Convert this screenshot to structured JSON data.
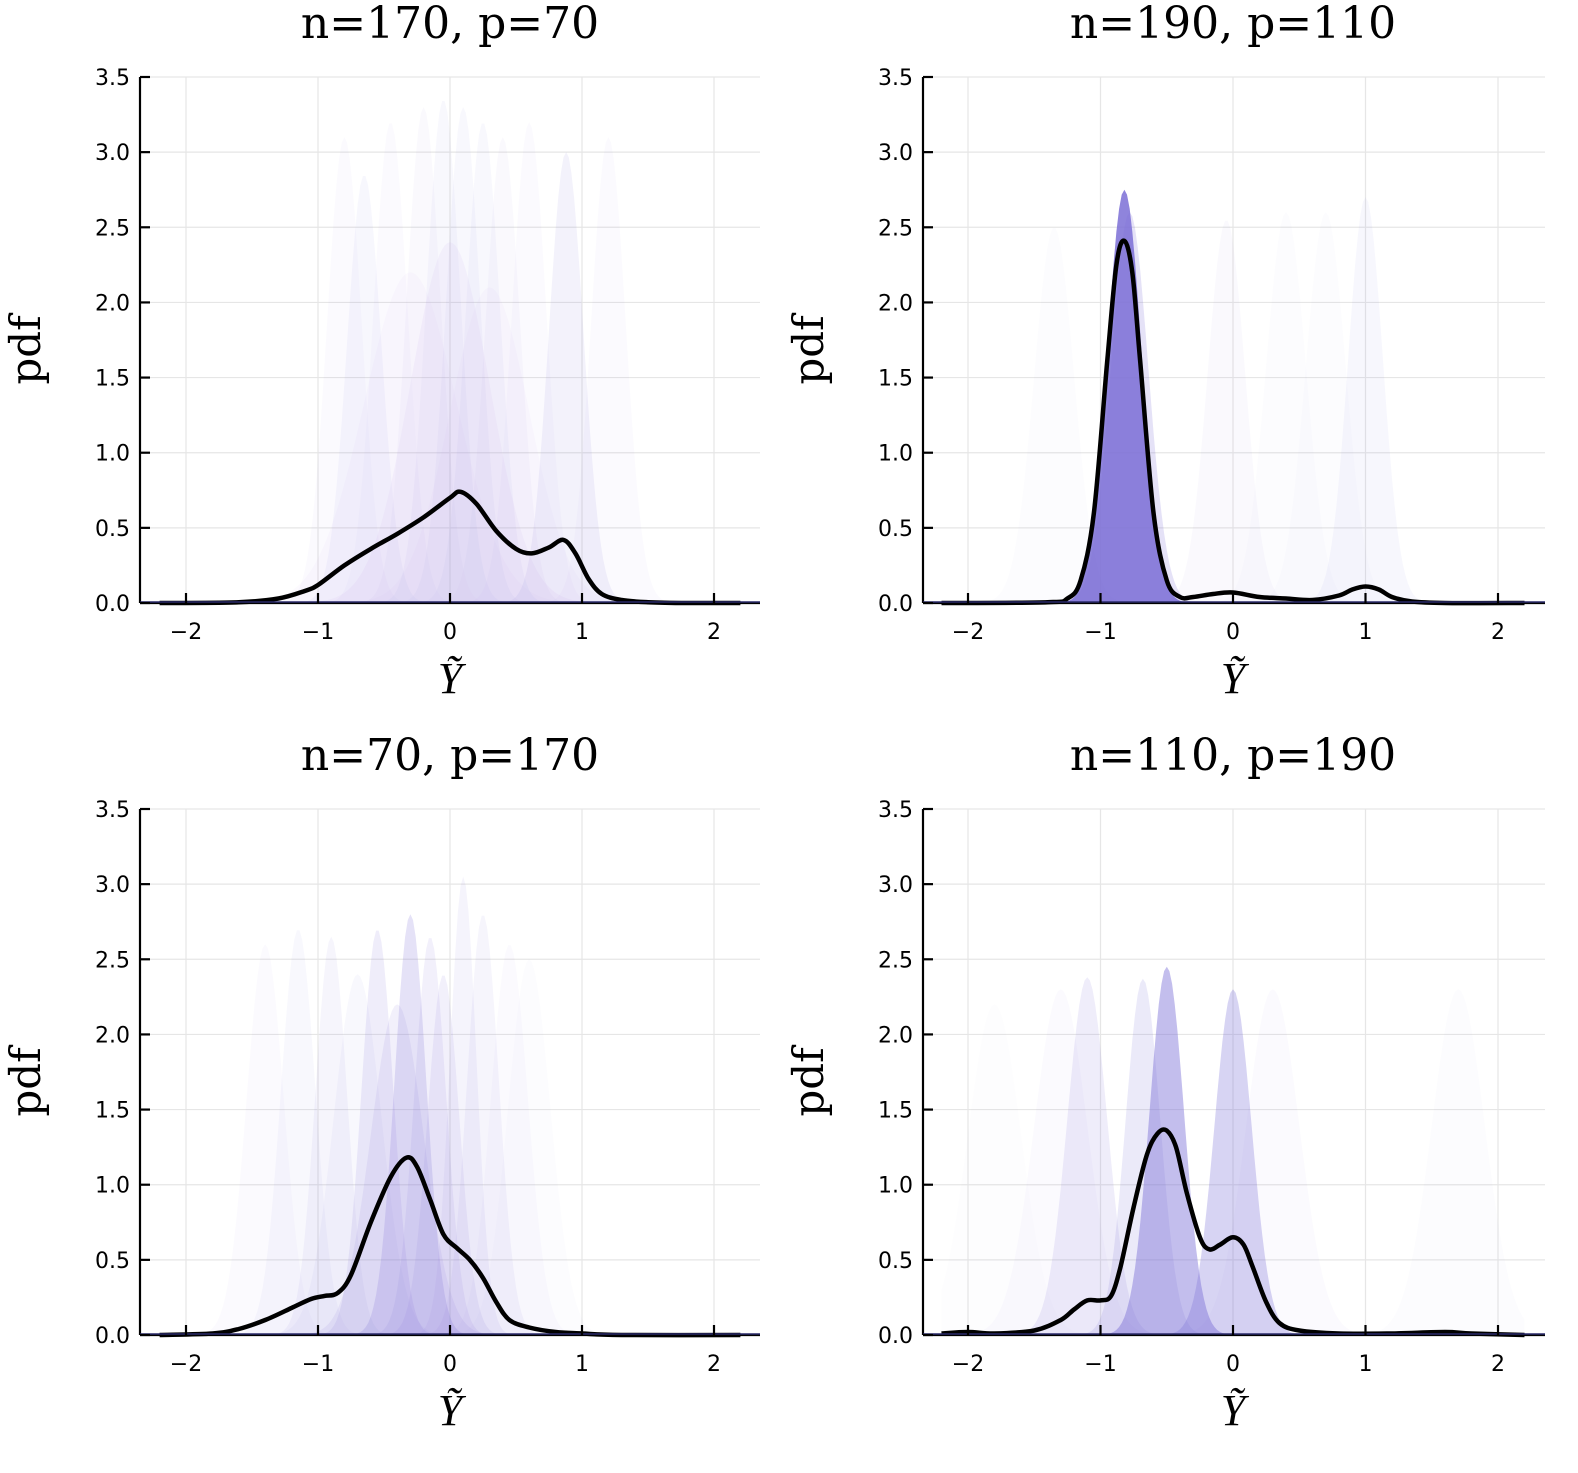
{
  "figure": {
    "layout": "2x2",
    "shared_style": {
      "component_fill_color": "#7b6fd6",
      "component_fill_color_alt": "#c8a8f0",
      "kde_line_color": "#000000",
      "grid_color": "#e6e6e6"
    }
  },
  "chart_data": [
    {
      "type": "area",
      "title": "n=170, p=70",
      "xlabel": "Ỹ",
      "ylabel": "pdf",
      "xlim": [
        -2.2,
        2.2
      ],
      "ylim": [
        0,
        3.5
      ],
      "xticks": [
        -2,
        -1,
        0,
        1,
        2
      ],
      "xtick_labels": [
        "−2",
        "−1",
        "0",
        "1",
        "2"
      ],
      "yticks": [
        0,
        0.5,
        1.0,
        1.5,
        2.0,
        2.5,
        3.0,
        3.5
      ],
      "ytick_labels": [
        "0.0",
        "0.5",
        "1.0",
        "1.5",
        "2.0",
        "2.5",
        "3.0",
        "3.5"
      ],
      "grid": true,
      "series": [
        {
          "name": "kde",
          "x": [
            -2.2,
            -1.6,
            -1.3,
            -1.1,
            -1.0,
            -0.8,
            -0.6,
            -0.4,
            -0.2,
            0.0,
            0.08,
            0.2,
            0.35,
            0.5,
            0.62,
            0.75,
            0.86,
            0.95,
            1.05,
            1.15,
            1.3,
            1.5,
            1.8,
            2.2
          ],
          "y": [
            0.0,
            0.005,
            0.03,
            0.08,
            0.12,
            0.25,
            0.36,
            0.46,
            0.57,
            0.7,
            0.74,
            0.66,
            0.48,
            0.36,
            0.33,
            0.37,
            0.42,
            0.33,
            0.16,
            0.06,
            0.02,
            0.005,
            0.0,
            0.0
          ]
        }
      ],
      "components": [
        {
          "mu": -0.65,
          "peak": 2.85,
          "sigma": 0.13,
          "alpha": 0.06
        },
        {
          "mu": 0.88,
          "peak": 3.0,
          "sigma": 0.13,
          "alpha": 0.09
        },
        {
          "mu": -0.8,
          "peak": 3.1,
          "sigma": 0.13,
          "alpha": 0.03
        },
        {
          "mu": -0.45,
          "peak": 3.2,
          "sigma": 0.13,
          "alpha": 0.03
        },
        {
          "mu": -0.2,
          "peak": 3.3,
          "sigma": 0.13,
          "alpha": 0.04
        },
        {
          "mu": -0.05,
          "peak": 3.35,
          "sigma": 0.13,
          "alpha": 0.05
        },
        {
          "mu": 0.1,
          "peak": 3.3,
          "sigma": 0.13,
          "alpha": 0.05
        },
        {
          "mu": 0.25,
          "peak": 3.2,
          "sigma": 0.13,
          "alpha": 0.05
        },
        {
          "mu": 0.4,
          "peak": 3.1,
          "sigma": 0.13,
          "alpha": 0.04
        },
        {
          "mu": 0.6,
          "peak": 3.2,
          "sigma": 0.13,
          "alpha": 0.03
        },
        {
          "mu": 1.2,
          "peak": 3.1,
          "sigma": 0.13,
          "alpha": 0.03
        },
        {
          "mu": 0.0,
          "peak": 2.4,
          "sigma": 0.3,
          "alpha": 0.1
        },
        {
          "mu": -0.3,
          "peak": 2.2,
          "sigma": 0.35,
          "alpha": 0.06
        },
        {
          "mu": 0.3,
          "peak": 2.1,
          "sigma": 0.3,
          "alpha": 0.06
        }
      ]
    },
    {
      "type": "area",
      "title": "n=190, p=110",
      "xlabel": "Ỹ",
      "ylabel": "pdf",
      "xlim": [
        -2.2,
        2.2
      ],
      "ylim": [
        0,
        3.5
      ],
      "xticks": [
        -2,
        -1,
        0,
        1,
        2
      ],
      "xtick_labels": [
        "−2",
        "−1",
        "0",
        "1",
        "2"
      ],
      "yticks": [
        0,
        0.5,
        1.0,
        1.5,
        2.0,
        2.5,
        3.0,
        3.5
      ],
      "ytick_labels": [
        "0.0",
        "0.5",
        "1.0",
        "1.5",
        "2.0",
        "2.5",
        "3.0",
        "3.5"
      ],
      "grid": true,
      "series": [
        {
          "name": "kde",
          "x": [
            -2.2,
            -1.4,
            -1.25,
            -1.15,
            -1.05,
            -0.95,
            -0.88,
            -0.82,
            -0.76,
            -0.7,
            -0.6,
            -0.5,
            -0.4,
            -0.3,
            -0.15,
            0.0,
            0.2,
            0.4,
            0.6,
            0.8,
            0.9,
            1.0,
            1.1,
            1.2,
            1.35,
            1.6,
            2.2
          ],
          "y": [
            0.0,
            0.005,
            0.03,
            0.15,
            0.6,
            1.6,
            2.25,
            2.41,
            2.2,
            1.6,
            0.6,
            0.15,
            0.04,
            0.04,
            0.06,
            0.07,
            0.04,
            0.03,
            0.02,
            0.05,
            0.09,
            0.11,
            0.09,
            0.04,
            0.01,
            0.0,
            0.0
          ]
        }
      ],
      "components": [
        {
          "mu": -0.82,
          "peak": 2.75,
          "sigma": 0.13,
          "alpha": 0.85
        },
        {
          "mu": -0.78,
          "peak": 2.6,
          "sigma": 0.14,
          "alpha": 0.2
        },
        {
          "mu": 1.0,
          "peak": 2.7,
          "sigma": 0.13,
          "alpha": 0.06
        },
        {
          "mu": -0.05,
          "peak": 2.55,
          "sigma": 0.14,
          "alpha": 0.04
        },
        {
          "mu": -1.35,
          "peak": 2.5,
          "sigma": 0.15,
          "alpha": 0.02
        },
        {
          "mu": 0.4,
          "peak": 2.6,
          "sigma": 0.15,
          "alpha": 0.02
        },
        {
          "mu": 0.7,
          "peak": 2.6,
          "sigma": 0.15,
          "alpha": 0.02
        }
      ]
    },
    {
      "type": "area",
      "title": "n=70, p=170",
      "xlabel": "Ỹ",
      "ylabel": "pdf",
      "xlim": [
        -2.2,
        2.2
      ],
      "ylim": [
        0,
        3.5
      ],
      "xticks": [
        -2,
        -1,
        0,
        1,
        2
      ],
      "xtick_labels": [
        "−2",
        "−1",
        "0",
        "1",
        "2"
      ],
      "yticks": [
        0,
        0.5,
        1.0,
        1.5,
        2.0,
        2.5,
        3.0,
        3.5
      ],
      "ytick_labels": [
        "0.0",
        "0.5",
        "1.0",
        "1.5",
        "2.0",
        "2.5",
        "3.0",
        "3.5"
      ],
      "grid": true,
      "series": [
        {
          "name": "kde",
          "x": [
            -2.2,
            -1.8,
            -1.6,
            -1.4,
            -1.2,
            -1.05,
            -0.95,
            -0.85,
            -0.75,
            -0.6,
            -0.45,
            -0.33,
            -0.25,
            -0.15,
            -0.05,
            0.05,
            0.15,
            0.25,
            0.35,
            0.45,
            0.6,
            0.8,
            1.0,
            1.3,
            2.2
          ],
          "y": [
            0.0,
            0.01,
            0.04,
            0.1,
            0.18,
            0.24,
            0.26,
            0.28,
            0.4,
            0.75,
            1.05,
            1.18,
            1.12,
            0.9,
            0.67,
            0.58,
            0.5,
            0.38,
            0.22,
            0.1,
            0.05,
            0.02,
            0.01,
            0.0,
            0.0
          ]
        }
      ],
      "components": [
        {
          "mu": -0.3,
          "peak": 2.8,
          "sigma": 0.12,
          "alpha": 0.2
        },
        {
          "mu": -0.55,
          "peak": 2.7,
          "sigma": 0.12,
          "alpha": 0.12
        },
        {
          "mu": 0.1,
          "peak": 3.05,
          "sigma": 0.1,
          "alpha": 0.08
        },
        {
          "mu": 0.25,
          "peak": 2.8,
          "sigma": 0.12,
          "alpha": 0.07
        },
        {
          "mu": -0.15,
          "peak": 2.65,
          "sigma": 0.12,
          "alpha": 0.1
        },
        {
          "mu": -0.05,
          "peak": 2.4,
          "sigma": 0.12,
          "alpha": 0.1
        },
        {
          "mu": -0.9,
          "peak": 2.65,
          "sigma": 0.12,
          "alpha": 0.07
        },
        {
          "mu": -1.15,
          "peak": 2.7,
          "sigma": 0.13,
          "alpha": 0.05
        },
        {
          "mu": -1.4,
          "peak": 2.6,
          "sigma": 0.14,
          "alpha": 0.03
        },
        {
          "mu": 0.45,
          "peak": 2.6,
          "sigma": 0.14,
          "alpha": 0.03
        },
        {
          "mu": -0.4,
          "peak": 2.2,
          "sigma": 0.2,
          "alpha": 0.1
        },
        {
          "mu": -0.7,
          "peak": 2.4,
          "sigma": 0.18,
          "alpha": 0.05
        },
        {
          "mu": 0.6,
          "peak": 2.5,
          "sigma": 0.16,
          "alpha": 0.02
        }
      ]
    },
    {
      "type": "area",
      "title": "n=110, p=190",
      "xlabel": "Ỹ",
      "ylabel": "pdf",
      "xlim": [
        -2.2,
        2.2
      ],
      "ylim": [
        0,
        3.5
      ],
      "xticks": [
        -2,
        -1,
        0,
        1,
        2
      ],
      "xtick_labels": [
        "−2",
        "−1",
        "0",
        "1",
        "2"
      ],
      "yticks": [
        0,
        0.5,
        1.0,
        1.5,
        2.0,
        2.5,
        3.0,
        3.5
      ],
      "ytick_labels": [
        "0.0",
        "0.5",
        "1.0",
        "1.5",
        "2.0",
        "2.5",
        "3.0",
        "3.5"
      ],
      "grid": true,
      "series": [
        {
          "name": "kde",
          "x": [
            -2.2,
            -2.0,
            -1.8,
            -1.5,
            -1.3,
            -1.2,
            -1.1,
            -1.0,
            -0.92,
            -0.85,
            -0.75,
            -0.65,
            -0.57,
            -0.5,
            -0.43,
            -0.35,
            -0.25,
            -0.18,
            -0.1,
            0.0,
            0.08,
            0.15,
            0.25,
            0.35,
            0.5,
            0.8,
            1.2,
            1.6,
            1.8,
            2.2
          ],
          "y": [
            0.01,
            0.02,
            0.01,
            0.03,
            0.1,
            0.17,
            0.23,
            0.23,
            0.26,
            0.45,
            0.85,
            1.2,
            1.34,
            1.36,
            1.25,
            0.95,
            0.65,
            0.57,
            0.6,
            0.65,
            0.6,
            0.45,
            0.22,
            0.08,
            0.03,
            0.01,
            0.01,
            0.02,
            0.01,
            0.0
          ]
        }
      ],
      "components": [
        {
          "mu": -0.5,
          "peak": 2.45,
          "sigma": 0.13,
          "alpha": 0.45
        },
        {
          "mu": 0.0,
          "peak": 2.3,
          "sigma": 0.14,
          "alpha": 0.3
        },
        {
          "mu": -0.68,
          "peak": 2.37,
          "sigma": 0.13,
          "alpha": 0.15
        },
        {
          "mu": -1.1,
          "peak": 2.38,
          "sigma": 0.15,
          "alpha": 0.12
        },
        {
          "mu": -1.3,
          "peak": 2.3,
          "sigma": 0.2,
          "alpha": 0.03
        },
        {
          "mu": 0.3,
          "peak": 2.3,
          "sigma": 0.2,
          "alpha": 0.03
        },
        {
          "mu": 1.7,
          "peak": 2.3,
          "sigma": 0.2,
          "alpha": 0.02
        },
        {
          "mu": -1.8,
          "peak": 2.2,
          "sigma": 0.2,
          "alpha": 0.015
        }
      ]
    }
  ]
}
